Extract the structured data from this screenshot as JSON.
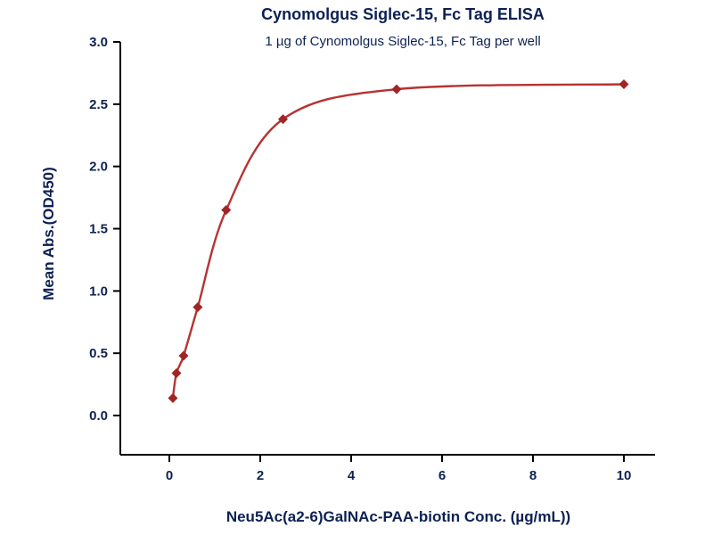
{
  "chart_data": {
    "type": "scatter",
    "title": "Cynomolgus Siglec-15, Fc Tag ELISA",
    "subtitle": "1 µg of Cynomolgus Siglec-15, Fc Tag per well",
    "xlabel": "Neu5Ac(a2-6)GalNAc-PAA-biotin Conc. (µg/mL))",
    "ylabel": "Mean Abs.(OD450)",
    "xlim": [
      0,
      10
    ],
    "ylim": [
      0.0,
      3.0
    ],
    "x_ticks": [
      0,
      2,
      4,
      6,
      8,
      10
    ],
    "y_ticks": [
      0.0,
      0.5,
      1.0,
      1.5,
      2.0,
      2.5,
      3.0
    ],
    "grid": false,
    "legend": "none",
    "series": [
      {
        "name": "Neu5Ac(a2-6)GalNAc-PAA-biotin",
        "x": [
          0.078,
          0.156,
          0.313,
          0.625,
          1.25,
          2.5,
          5,
          10
        ],
        "y": [
          0.14,
          0.34,
          0.48,
          0.87,
          1.65,
          2.38,
          2.62,
          2.66
        ]
      }
    ],
    "curve_color": "#b73333",
    "marker_color": "#a02525",
    "marker": "diamond",
    "axis_color": "#000000",
    "text_color": "#0d2152",
    "background_color": "#ffffff"
  }
}
